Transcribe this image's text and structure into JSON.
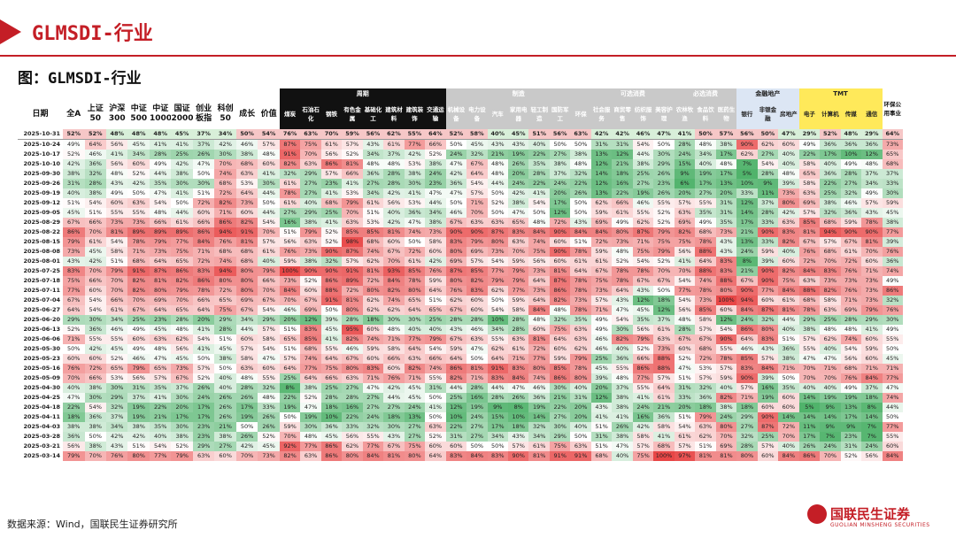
{
  "header": {
    "title": "GLMSDI-行业",
    "figure_title": "图：GLMSDI-行业"
  },
  "groups": {
    "cycle": "周期",
    "mfg": "制造",
    "consumer": "可选消费",
    "staples": "必选消费",
    "fin": "金融地产",
    "tmt": "TMT"
  },
  "columns": {
    "date": "日期",
    "main": [
      "全A",
      "上证50",
      "沪深300",
      "中证500",
      "中证1000",
      "国证2000",
      "创业板指",
      "科创50",
      "成长",
      "价值"
    ],
    "cycle": [
      "煤炭",
      "石油石化",
      "钢铁",
      "有色金属",
      "基础化工",
      "建筑材料",
      "建筑装饰",
      "交通运输"
    ],
    "mfg": [
      "机械设备",
      "电力设备",
      "汽车",
      "家用电器",
      "轻工制造",
      "国防军工",
      "环保"
    ],
    "consumer": [
      "社会服务",
      "商贸零售",
      "纺织服饰",
      "美容护理"
    ],
    "staples": [
      "农林牧渔",
      "食品饮料",
      "医药生物"
    ],
    "fin": [
      "银行",
      "非银金融",
      "房地产"
    ],
    "tmt": [
      "电子",
      "计算机",
      "传媒",
      "通信"
    ],
    "last": "环保公用事业"
  },
  "rows": [
    {
      "date": "2025-10-31",
      "v": [
        52,
        52,
        48,
        48,
        48,
        45,
        37,
        34,
        50,
        54,
        76,
        63,
        70,
        59,
        56,
        62,
        55,
        64,
        52,
        58,
        40,
        45,
        51,
        56,
        63,
        42,
        42,
        46,
        47,
        41,
        50,
        57,
        56,
        50,
        47,
        29,
        52,
        48,
        29,
        64
      ]
    },
    {
      "date": "2025-10-24",
      "v": [
        49,
        64,
        56,
        45,
        41,
        41,
        37,
        42,
        46,
        57,
        87,
        75,
        61,
        57,
        43,
        61,
        77,
        66,
        50,
        45,
        43,
        43,
        40,
        50,
        50,
        31,
        31,
        54,
        50,
        28,
        48,
        38,
        90,
        62,
        60,
        49,
        36,
        36,
        36,
        73
      ]
    },
    {
      "date": "2025-10-17",
      "v": [
        52,
        46,
        41,
        34,
        28,
        25,
        26,
        30,
        38,
        48,
        91,
        70,
        56,
        52,
        34,
        37,
        42,
        52,
        24,
        32,
        21,
        19,
        22,
        27,
        38,
        13,
        12,
        44,
        30,
        24,
        34,
        17,
        62,
        27,
        40,
        22,
        17,
        10,
        12,
        65
      ]
    },
    {
      "date": "2025-10-10",
      "v": [
        42,
        36,
        56,
        60,
        49,
        42,
        47,
        70,
        68,
        60,
        82,
        63,
        86,
        81,
        48,
        48,
        53,
        38,
        47,
        67,
        48,
        26,
        35,
        38,
        48,
        12,
        21,
        38,
        29,
        15,
        40,
        48,
        7,
        54,
        40,
        58,
        40,
        49,
        48,
        68
      ]
    },
    {
      "date": "2025-09-30",
      "v": [
        38,
        32,
        48,
        52,
        44,
        38,
        50,
        74,
        63,
        41,
        32,
        29,
        57,
        66,
        36,
        28,
        38,
        24,
        42,
        64,
        48,
        20,
        28,
        37,
        32,
        14,
        18,
        25,
        26,
        9,
        19,
        17,
        5,
        28,
        48,
        65,
        36,
        28,
        37,
        37
      ]
    },
    {
      "date": "2025-09-26",
      "v": [
        31,
        28,
        43,
        42,
        35,
        30,
        30,
        68,
        53,
        30,
        61,
        27,
        23,
        41,
        27,
        28,
        30,
        23,
        36,
        54,
        44,
        24,
        22,
        24,
        22,
        12,
        16,
        27,
        23,
        6,
        17,
        13,
        10,
        9,
        39,
        58,
        22,
        27,
        34,
        33
      ]
    },
    {
      "date": "2025-09-19",
      "v": [
        40,
        38,
        49,
        50,
        47,
        41,
        51,
        72,
        64,
        44,
        78,
        27,
        41,
        53,
        34,
        42,
        41,
        47,
        47,
        57,
        50,
        42,
        41,
        20,
        26,
        13,
        22,
        19,
        26,
        20,
        27,
        20,
        33,
        11,
        73,
        63,
        25,
        32,
        49,
        30
      ]
    },
    {
      "date": "2025-09-12",
      "v": [
        51,
        54,
        60,
        63,
        54,
        50,
        72,
        82,
        73,
        50,
        61,
        40,
        68,
        79,
        61,
        56,
        53,
        44,
        50,
        71,
        52,
        38,
        54,
        17,
        50,
        62,
        66,
        46,
        55,
        57,
        55,
        31,
        12,
        37,
        80,
        69,
        38,
        46,
        57,
        59
      ]
    },
    {
      "date": "2025-09-05",
      "v": [
        45,
        51,
        55,
        55,
        48,
        44,
        60,
        71,
        60,
        44,
        27,
        29,
        25,
        70,
        51,
        40,
        36,
        34,
        46,
        70,
        50,
        47,
        50,
        12,
        50,
        59,
        61,
        55,
        52,
        63,
        35,
        31,
        14,
        28,
        42,
        57,
        32,
        36,
        43,
        45
      ]
    },
    {
      "date": "2025-08-29",
      "v": [
        67,
        66,
        73,
        73,
        66,
        61,
        66,
        86,
        82,
        54,
        16,
        38,
        41,
        63,
        53,
        42,
        47,
        38,
        67,
        63,
        63,
        65,
        48,
        72,
        43,
        69,
        49,
        62,
        52,
        69,
        49,
        35,
        17,
        33,
        63,
        85,
        68,
        59,
        78,
        38
      ]
    },
    {
      "date": "2025-08-22",
      "v": [
        86,
        70,
        81,
        89,
        89,
        89,
        86,
        94,
        91,
        70,
        51,
        79,
        52,
        85,
        85,
        81,
        74,
        73,
        90,
        90,
        87,
        83,
        84,
        90,
        84,
        84,
        80,
        87,
        79,
        82,
        68,
        73,
        21,
        90,
        83,
        81,
        94,
        90,
        90,
        77
      ]
    },
    {
      "date": "2025-08-15",
      "v": [
        79,
        61,
        54,
        78,
        79,
        77,
        84,
        76,
        81,
        57,
        56,
        63,
        52,
        98,
        68,
        60,
        50,
        58,
        83,
        79,
        80,
        63,
        74,
        60,
        51,
        72,
        73,
        71,
        75,
        75,
        78,
        43,
        13,
        33,
        82,
        67,
        57,
        67,
        81,
        39
      ]
    },
    {
      "date": "2025-08-08",
      "v": [
        73,
        45,
        58,
        71,
        73,
        75,
        71,
        68,
        68,
        61,
        76,
        73,
        90,
        87,
        74,
        67,
        72,
        60,
        80,
        69,
        73,
        70,
        75,
        90,
        78,
        59,
        48,
        75,
        79,
        56,
        88,
        43,
        24,
        59,
        40,
        76,
        68,
        61,
        70,
        76
      ]
    },
    {
      "date": "2025-08-01",
      "v": [
        43,
        42,
        51,
        68,
        64,
        65,
        72,
        74,
        68,
        40,
        59,
        38,
        32,
        57,
        62,
        70,
        61,
        42,
        69,
        57,
        54,
        59,
        56,
        60,
        61,
        61,
        52,
        54,
        52,
        41,
        64,
        83,
        8,
        39,
        60,
        72,
        70,
        72,
        60,
        36
      ]
    },
    {
      "date": "2025-07-25",
      "v": [
        83,
        70,
        79,
        91,
        87,
        86,
        83,
        94,
        80,
        79,
        100,
        90,
        90,
        91,
        81,
        93,
        85,
        76,
        87,
        85,
        77,
        79,
        73,
        81,
        64,
        67,
        78,
        78,
        70,
        70,
        88,
        83,
        21,
        90,
        82,
        84,
        83,
        76,
        71,
        74
      ]
    },
    {
      "date": "2025-07-18",
      "v": [
        75,
        66,
        70,
        82,
        81,
        82,
        86,
        80,
        80,
        66,
        73,
        52,
        86,
        89,
        72,
        84,
        78,
        59,
        80,
        82,
        79,
        79,
        64,
        87,
        78,
        75,
        78,
        67,
        67,
        54,
        74,
        88,
        67,
        90,
        75,
        63,
        73,
        73,
        73,
        49
      ]
    },
    {
      "date": "2025-07-11",
      "v": [
        77,
        60,
        70,
        82,
        80,
        79,
        78,
        72,
        80,
        70,
        84,
        60,
        88,
        72,
        80,
        82,
        80,
        64,
        76,
        83,
        62,
        77,
        73,
        86,
        78,
        73,
        64,
        43,
        50,
        77,
        78,
        80,
        90,
        77,
        84,
        88,
        82,
        76,
        73,
        86
      ]
    },
    {
      "date": "2025-07-04",
      "v": [
        67,
        54,
        66,
        70,
        69,
        70,
        66,
        65,
        69,
        67,
        70,
        67,
        91,
        81,
        62,
        74,
        65,
        51,
        62,
        60,
        50,
        59,
        64,
        82,
        73,
        57,
        43,
        12,
        18,
        54,
        73,
        100,
        94,
        60,
        61,
        68,
        58,
        71,
        73,
        32
      ]
    },
    {
      "date": "2025-06-27",
      "v": [
        64,
        54,
        61,
        67,
        64,
        65,
        64,
        75,
        67,
        54,
        46,
        69,
        50,
        80,
        62,
        62,
        64,
        65,
        67,
        60,
        54,
        58,
        84,
        48,
        78,
        71,
        47,
        45,
        12,
        56,
        85,
        60,
        84,
        87,
        81,
        78,
        63,
        69,
        79,
        76
      ]
    },
    {
      "date": "2025-06-20",
      "v": [
        29,
        30,
        34,
        25,
        23,
        28,
        20,
        29,
        34,
        29,
        20,
        12,
        39,
        28,
        18,
        30,
        30,
        25,
        28,
        28,
        10,
        28,
        48,
        32,
        35,
        49,
        54,
        35,
        37,
        48,
        58,
        12,
        24,
        32,
        44,
        29,
        25,
        28,
        29,
        30
      ]
    },
    {
      "date": "2025-06-13",
      "v": [
        52,
        36,
        46,
        49,
        45,
        48,
        41,
        28,
        44,
        57,
        51,
        83,
        45,
        95,
        60,
        48,
        40,
        40,
        43,
        46,
        34,
        28,
        60,
        75,
        63,
        49,
        30,
        56,
        61,
        28,
        57,
        54,
        86,
        80,
        40,
        38,
        48,
        48,
        41,
        49
      ]
    },
    {
      "date": "2025-06-06",
      "v": [
        71,
        55,
        55,
        60,
        63,
        62,
        54,
        51,
        60,
        58,
        65,
        85,
        41,
        82,
        74,
        71,
        77,
        79,
        67,
        63,
        55,
        63,
        81,
        64,
        63,
        46,
        82,
        79,
        63,
        67,
        67,
        90,
        64,
        83,
        51,
        57,
        62,
        74,
        60,
        55
      ]
    },
    {
      "date": "2025-05-30",
      "v": [
        50,
        42,
        45,
        49,
        48,
        56,
        41,
        45,
        57,
        54,
        51,
        68,
        55,
        46,
        59,
        58,
        64,
        54,
        59,
        47,
        62,
        61,
        72,
        60,
        62,
        46,
        40,
        52,
        73,
        60,
        68,
        55,
        46,
        43,
        36,
        55,
        40,
        54,
        59,
        50
      ]
    },
    {
      "date": "2025-05-23",
      "v": [
        60,
        60,
        52,
        46,
        47,
        45,
        50,
        38,
        58,
        47,
        57,
        74,
        64,
        67,
        60,
        66,
        63,
        66,
        64,
        50,
        64,
        71,
        77,
        59,
        79,
        25,
        36,
        66,
        88,
        52,
        72,
        78,
        85,
        57,
        38,
        47,
        47,
        56,
        60,
        45
      ]
    },
    {
      "date": "2025-05-16",
      "v": [
        76,
        72,
        65,
        79,
        65,
        73,
        57,
        50,
        63,
        60,
        64,
        77,
        75,
        80,
        83,
        60,
        82,
        74,
        86,
        81,
        91,
        83,
        80,
        85,
        78,
        45,
        55,
        86,
        88,
        47,
        53,
        57,
        83,
        84,
        71,
        70,
        71,
        68,
        71,
        71
      ]
    },
    {
      "date": "2025-05-09",
      "v": [
        70,
        66,
        53,
        56,
        57,
        67,
        52,
        40,
        48,
        55,
        25,
        64,
        66,
        63,
        71,
        76,
        71,
        55,
        82,
        71,
        83,
        84,
        74,
        86,
        80,
        39,
        48,
        77,
        57,
        51,
        57,
        59,
        90,
        39,
        50,
        70,
        70,
        76,
        84,
        77
      ]
    },
    {
      "date": "2025-04-30",
      "v": [
        40,
        38,
        30,
        31,
        35,
        37,
        26,
        40,
        28,
        32,
        8,
        38,
        25,
        27,
        47,
        42,
        45,
        31,
        44,
        28,
        44,
        47,
        46,
        30,
        40,
        20,
        37,
        55,
        64,
        31,
        32,
        40,
        57,
        16,
        35,
        40,
        40,
        49,
        37,
        47
      ]
    },
    {
      "date": "2025-04-25",
      "v": [
        47,
        30,
        29,
        37,
        41,
        30,
        24,
        26,
        26,
        48,
        22,
        52,
        28,
        28,
        27,
        44,
        45,
        50,
        25,
        16,
        28,
        26,
        36,
        21,
        31,
        12,
        38,
        41,
        61,
        33,
        36,
        82,
        71,
        19,
        60,
        14,
        19,
        19,
        18,
        74
      ]
    },
    {
      "date": "2025-04-18",
      "v": [
        22,
        54,
        32,
        19,
        22,
        20,
        17,
        26,
        17,
        33,
        19,
        47,
        18,
        16,
        27,
        27,
        24,
        41,
        12,
        19,
        9,
        8,
        19,
        22,
        20,
        43,
        38,
        24,
        21,
        20,
        18,
        38,
        18,
        60,
        60,
        5,
        9,
        13,
        8,
        44
      ]
    },
    {
      "date": "2025-04-11",
      "v": [
        18,
        36,
        37,
        19,
        21,
        17,
        17,
        26,
        19,
        26,
        50,
        19,
        10,
        22,
        24,
        18,
        13,
        50,
        10,
        24,
        15,
        10,
        14,
        27,
        20,
        41,
        41,
        16,
        36,
        51,
        79,
        24,
        29,
        90,
        14,
        14,
        14,
        17,
        14,
        50
      ]
    },
    {
      "date": "2025-04-03",
      "v": [
        38,
        38,
        34,
        38,
        35,
        30,
        23,
        21,
        50,
        26,
        59,
        30,
        36,
        33,
        32,
        30,
        27,
        63,
        22,
        27,
        17,
        18,
        32,
        30,
        40,
        51,
        26,
        42,
        58,
        54,
        63,
        80,
        27,
        87,
        72,
        11,
        9,
        9,
        7,
        77
      ]
    },
    {
      "date": "2025-03-28",
      "v": [
        36,
        50,
        42,
        42,
        40,
        38,
        23,
        38,
        26,
        52,
        70,
        48,
        45,
        56,
        55,
        43,
        27,
        52,
        31,
        27,
        34,
        43,
        34,
        29,
        50,
        31,
        38,
        58,
        41,
        61,
        62,
        70,
        32,
        25,
        70,
        17,
        7,
        23,
        7,
        55
      ]
    },
    {
      "date": "2025-03-21",
      "v": [
        56,
        38,
        43,
        51,
        54,
        52,
        29,
        27,
        42,
        45,
        92,
        77,
        86,
        62,
        77,
        67,
        75,
        60,
        60,
        50,
        50,
        57,
        61,
        75,
        63,
        51,
        47,
        57,
        68,
        57,
        51,
        69,
        28,
        57,
        40,
        26,
        24,
        31,
        24,
        60
      ]
    },
    {
      "date": "2025-03-14",
      "v": [
        79,
        70,
        76,
        80,
        77,
        79,
        63,
        60,
        70,
        73,
        82,
        63,
        86,
        80,
        84,
        81,
        80,
        64,
        83,
        84,
        83,
        90,
        81,
        91,
        91,
        68,
        40,
        75,
        100,
        97,
        81,
        81,
        80,
        60,
        84,
        86,
        70,
        52,
        56,
        84
      ]
    }
  ],
  "footer": {
    "source": "数据来源：Wind，国联民生证券研究所",
    "logo_cn": "国联民生证券",
    "logo_en": "GUOLIAN MINSHENG SECURITIES"
  }
}
